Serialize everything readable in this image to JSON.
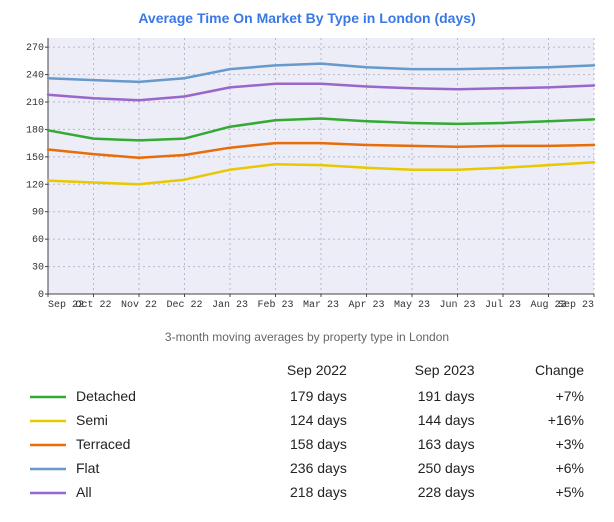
{
  "title": "Average Time On Market By Type in London (days)",
  "subtitle": "3-month moving averages by property type in London",
  "chart": {
    "type": "line",
    "background_color": "#ecedf6",
    "grid_color": "#b7b8c8",
    "axis_color": "#444444",
    "line_width": 2.5,
    "tick_font": "Courier New",
    "tick_fontsize": 10,
    "title_fontsize": 14,
    "title_color": "#3a78e7",
    "x_categories": [
      "Sep 22",
      "Oct 22",
      "Nov 22",
      "Dec 22",
      "Jan 23",
      "Feb 23",
      "Mar 23",
      "Apr 23",
      "May 23",
      "Jun 23",
      "Jul 23",
      "Aug 23",
      "Sep 23"
    ],
    "ylim": [
      0,
      280
    ],
    "ytick_step": 30,
    "series": [
      {
        "name": "Flat",
        "color": "#6699cc",
        "values": [
          236,
          234,
          232,
          236,
          246,
          250,
          252,
          248,
          246,
          246,
          247,
          248,
          250
        ]
      },
      {
        "name": "All",
        "color": "#9966cc",
        "values": [
          218,
          214,
          212,
          216,
          226,
          230,
          230,
          227,
          225,
          224,
          225,
          226,
          228
        ]
      },
      {
        "name": "Detached",
        "color": "#33aa33",
        "values": [
          179,
          170,
          168,
          170,
          183,
          190,
          192,
          189,
          187,
          186,
          187,
          189,
          191
        ]
      },
      {
        "name": "Terraced",
        "color": "#e86c0a",
        "values": [
          158,
          153,
          149,
          152,
          160,
          165,
          165,
          163,
          162,
          161,
          162,
          162,
          163
        ]
      },
      {
        "name": "Semi",
        "color": "#e8c800",
        "values": [
          124,
          122,
          120,
          125,
          136,
          142,
          141,
          138,
          136,
          136,
          138,
          141,
          144
        ]
      }
    ]
  },
  "table": {
    "headers": [
      "",
      "Sep 2022",
      "Sep 2023",
      "Change"
    ],
    "rows": [
      {
        "name": "Detached",
        "color": "#33aa33",
        "start": "179 days",
        "end": "191 days",
        "change": "+7%"
      },
      {
        "name": "Semi",
        "color": "#e8c800",
        "start": "124 days",
        "end": "144 days",
        "change": "+16%"
      },
      {
        "name": "Terraced",
        "color": "#e86c0a",
        "start": "158 days",
        "end": "163 days",
        "change": "+3%"
      },
      {
        "name": "Flat",
        "color": "#6699cc",
        "start": "236 days",
        "end": "250 days",
        "change": "+6%"
      },
      {
        "name": "All",
        "color": "#9966cc",
        "start": "218 days",
        "end": "228 days",
        "change": "+5%"
      }
    ]
  }
}
